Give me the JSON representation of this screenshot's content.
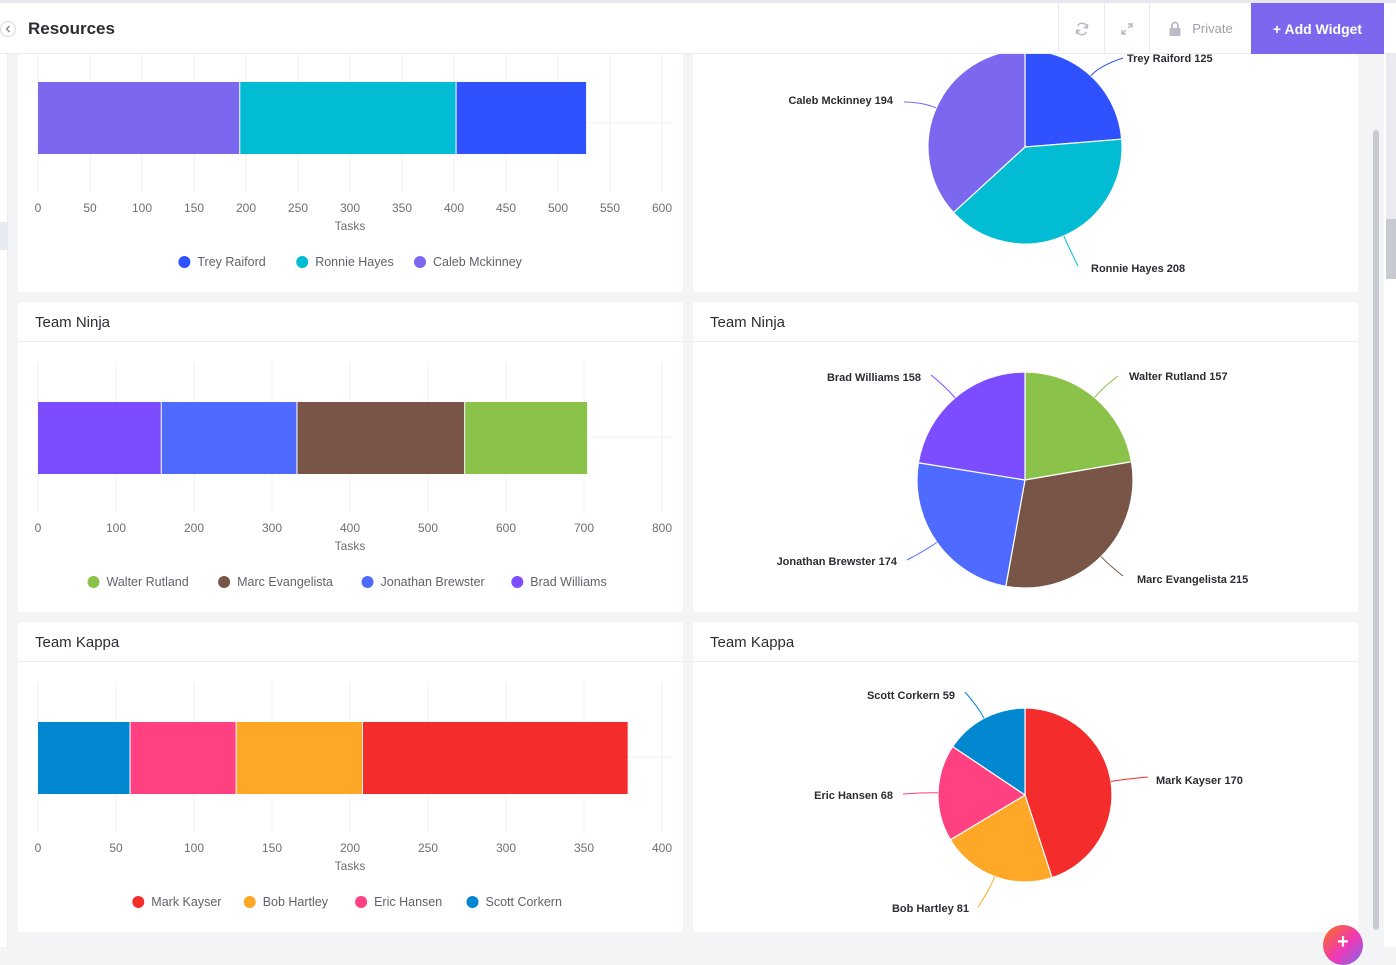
{
  "header": {
    "title": "Resources",
    "private_label": "Private",
    "add_widget_label": "+ Add Widget"
  },
  "colors": {
    "accent": "#7b68ee",
    "trey": "#3051ff",
    "ronnie": "#02bcd4",
    "caleb": "#7b68ee",
    "walter": "#8bc34a",
    "marc": "#795548",
    "jonathan": "#4f6bff",
    "brad": "#7c4dff",
    "mark": "#f42c2c",
    "bob": "#ffa726",
    "eric": "#ff4081",
    "scott": "#0288d1"
  },
  "chart_data": [
    {
      "type": "bar",
      "orientation": "horizontal-stacked",
      "title": "",
      "xlabel": "Tasks",
      "xlim": [
        0,
        600
      ],
      "ticks": [
        "0",
        "50",
        "100",
        "150",
        "200",
        "250",
        "300",
        "350",
        "400",
        "450",
        "500",
        "550",
        "600"
      ],
      "series": [
        {
          "name": "Caleb Mckinney",
          "value": 194,
          "color": "#7b68ee"
        },
        {
          "name": "Ronnie Hayes",
          "value": 208,
          "color": "#02bcd4"
        },
        {
          "name": "Trey Raiford",
          "value": 125,
          "color": "#3051ff"
        }
      ],
      "legend": [
        {
          "name": "Trey Raiford",
          "color": "#3051ff"
        },
        {
          "name": "Ronnie Hayes",
          "color": "#02bcd4"
        },
        {
          "name": "Caleb Mckinney",
          "color": "#7b68ee"
        }
      ],
      "legend_position": "bottom"
    },
    {
      "type": "pie",
      "title": "",
      "slices": [
        {
          "name": "Trey Raiford",
          "value": 125,
          "label": "Trey Raiford 125",
          "color": "#3051ff"
        },
        {
          "name": "Ronnie Hayes",
          "value": 208,
          "label": "Ronnie Hayes 208",
          "color": "#02bcd4"
        },
        {
          "name": "Caleb Mckinney",
          "value": 194,
          "label": "Caleb Mckinney 194",
          "color": "#7b68ee"
        }
      ]
    },
    {
      "type": "bar",
      "orientation": "horizontal-stacked",
      "title": "Team Ninja",
      "xlabel": "Tasks",
      "xlim": [
        0,
        800
      ],
      "ticks": [
        "0",
        "100",
        "200",
        "300",
        "400",
        "500",
        "600",
        "700",
        "800"
      ],
      "series": [
        {
          "name": "Brad Williams",
          "value": 158,
          "color": "#7c4dff"
        },
        {
          "name": "Jonathan Brewster",
          "value": 174,
          "color": "#4f6bff"
        },
        {
          "name": "Marc Evangelista",
          "value": 215,
          "color": "#795548"
        },
        {
          "name": "Walter Rutland",
          "value": 157,
          "color": "#8bc34a"
        }
      ],
      "legend": [
        {
          "name": "Walter Rutland",
          "color": "#8bc34a"
        },
        {
          "name": "Marc Evangelista",
          "color": "#795548"
        },
        {
          "name": "Jonathan Brewster",
          "color": "#4f6bff"
        },
        {
          "name": "Brad Williams",
          "color": "#7c4dff"
        }
      ],
      "legend_position": "bottom"
    },
    {
      "type": "pie",
      "title": "Team Ninja",
      "slices": [
        {
          "name": "Walter Rutland",
          "value": 157,
          "label": "Walter Rutland 157",
          "color": "#8bc34a"
        },
        {
          "name": "Marc Evangelista",
          "value": 215,
          "label": "Marc Evangelista 215",
          "color": "#795548"
        },
        {
          "name": "Jonathan Brewster",
          "value": 174,
          "label": "Jonathan Brewster 174",
          "color": "#4f6bff"
        },
        {
          "name": "Brad Williams",
          "value": 158,
          "label": "Brad Williams 158",
          "color": "#7c4dff"
        }
      ]
    },
    {
      "type": "bar",
      "orientation": "horizontal-stacked",
      "title": "Team Kappa",
      "xlabel": "Tasks",
      "xlim": [
        0,
        400
      ],
      "ticks": [
        "0",
        "50",
        "100",
        "150",
        "200",
        "250",
        "300",
        "350",
        "400"
      ],
      "series": [
        {
          "name": "Scott Corkern",
          "value": 59,
          "color": "#0288d1"
        },
        {
          "name": "Eric Hansen",
          "value": 68,
          "color": "#ff4081"
        },
        {
          "name": "Bob Hartley",
          "value": 81,
          "color": "#ffa726"
        },
        {
          "name": "Mark Kayser",
          "value": 170,
          "color": "#f42c2c"
        }
      ],
      "legend": [
        {
          "name": "Mark Kayser",
          "color": "#f42c2c"
        },
        {
          "name": "Bob Hartley",
          "color": "#ffa726"
        },
        {
          "name": "Eric Hansen",
          "color": "#ff4081"
        },
        {
          "name": "Scott Corkern",
          "color": "#0288d1"
        }
      ],
      "legend_position": "bottom"
    },
    {
      "type": "pie",
      "title": "Team Kappa",
      "slices": [
        {
          "name": "Mark Kayser",
          "value": 170,
          "label": "Mark Kayser 170",
          "color": "#f42c2c"
        },
        {
          "name": "Bob Hartley",
          "value": 81,
          "label": "Bob Hartley 81",
          "color": "#ffa726"
        },
        {
          "name": "Eric Hansen",
          "value": 68,
          "label": "Eric Hansen 68",
          "color": "#ff4081"
        },
        {
          "name": "Scott Corkern",
          "value": 59,
          "label": "Scott Corkern 59",
          "color": "#0288d1"
        }
      ]
    }
  ]
}
